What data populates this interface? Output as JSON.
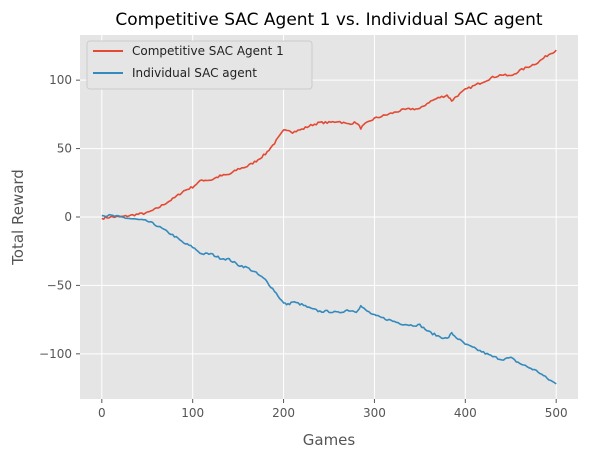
{
  "chart_data": {
    "type": "line",
    "title": "Competitive SAC Agent 1 vs. Individual SAC agent",
    "xlabel": "Games",
    "ylabel": "Total Reward",
    "xlim": [
      -24,
      524
    ],
    "ylim": [
      -133,
      133
    ],
    "xticks": [
      0,
      100,
      200,
      300,
      400,
      500
    ],
    "yticks": [
      -100,
      -50,
      0,
      50,
      100
    ],
    "grid": true,
    "legend_position": "upper-left",
    "x": [
      0,
      10,
      20,
      30,
      40,
      50,
      60,
      70,
      80,
      90,
      100,
      110,
      120,
      130,
      140,
      150,
      160,
      170,
      180,
      190,
      200,
      205,
      210,
      220,
      230,
      240,
      250,
      260,
      270,
      280,
      285,
      290,
      300,
      310,
      320,
      330,
      340,
      350,
      360,
      370,
      380,
      385,
      390,
      400,
      410,
      420,
      430,
      440,
      450,
      460,
      470,
      480,
      490,
      500
    ],
    "series": [
      {
        "name": "Competitive SAC Agent 1",
        "color": "#E24A33",
        "values": [
          -1,
          0,
          0,
          1,
          2,
          3,
          6,
          10,
          14,
          19,
          22,
          27,
          27,
          30,
          31,
          35,
          37,
          41,
          46,
          54,
          63,
          64,
          62,
          64,
          67,
          69,
          69,
          70,
          68,
          69,
          65,
          68,
          72,
          74,
          76,
          78,
          79,
          79,
          84,
          87,
          89,
          85,
          88,
          93,
          96,
          99,
          102,
          104,
          103,
          107,
          110,
          113,
          118,
          122
        ]
      },
      {
        "name": "Individual SAC agent",
        "color": "#348ABD",
        "values": [
          1,
          1,
          0,
          -1,
          -2,
          -3,
          -6,
          -10,
          -14,
          -19,
          -22,
          -27,
          -27,
          -30,
          -31,
          -35,
          -37,
          -41,
          -46,
          -54,
          -63,
          -64,
          -62,
          -64,
          -67,
          -69,
          -69,
          -70,
          -68,
          -69,
          -65,
          -68,
          -72,
          -74,
          -76,
          -78,
          -79,
          -79,
          -84,
          -87,
          -89,
          -85,
          -88,
          -93,
          -96,
          -99,
          -102,
          -104,
          -103,
          -107,
          -110,
          -113,
          -118,
          -122
        ]
      }
    ]
  }
}
